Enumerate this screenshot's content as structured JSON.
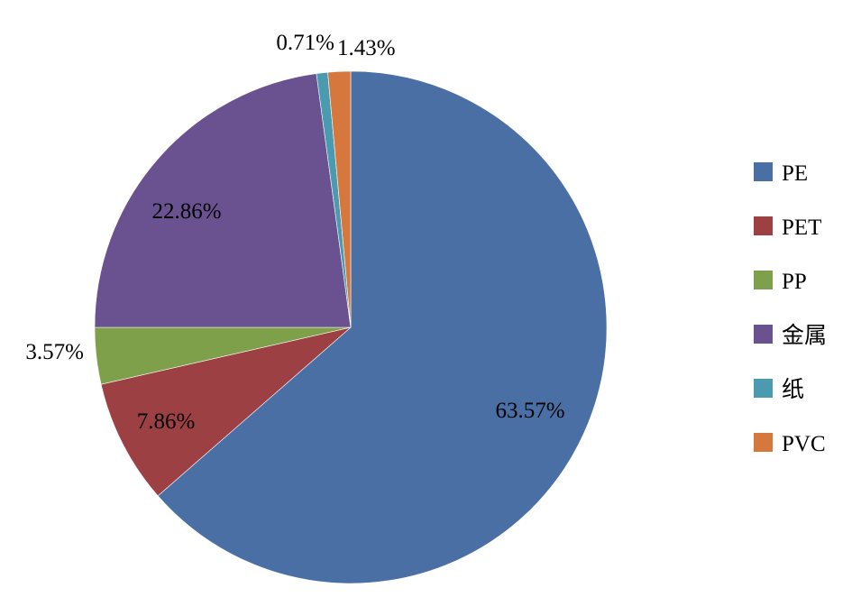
{
  "chart_data": {
    "type": "pie",
    "categories": [
      "PE",
      "PET",
      "PP",
      "金属",
      "纸",
      "PVC"
    ],
    "values": [
      63.57,
      7.86,
      3.57,
      22.86,
      0.71,
      1.43
    ],
    "labels": [
      "63.57%",
      "7.86%",
      "3.57%",
      "22.86%",
      "0.71%",
      "1.43%"
    ],
    "colors": [
      "#4A6FA5",
      "#9D4044",
      "#7EA04A",
      "#6A5290",
      "#4A9AB0",
      "#D6783E"
    ],
    "legend_position": "right",
    "start_angle": "12 o'clock",
    "direction": "clockwise"
  }
}
